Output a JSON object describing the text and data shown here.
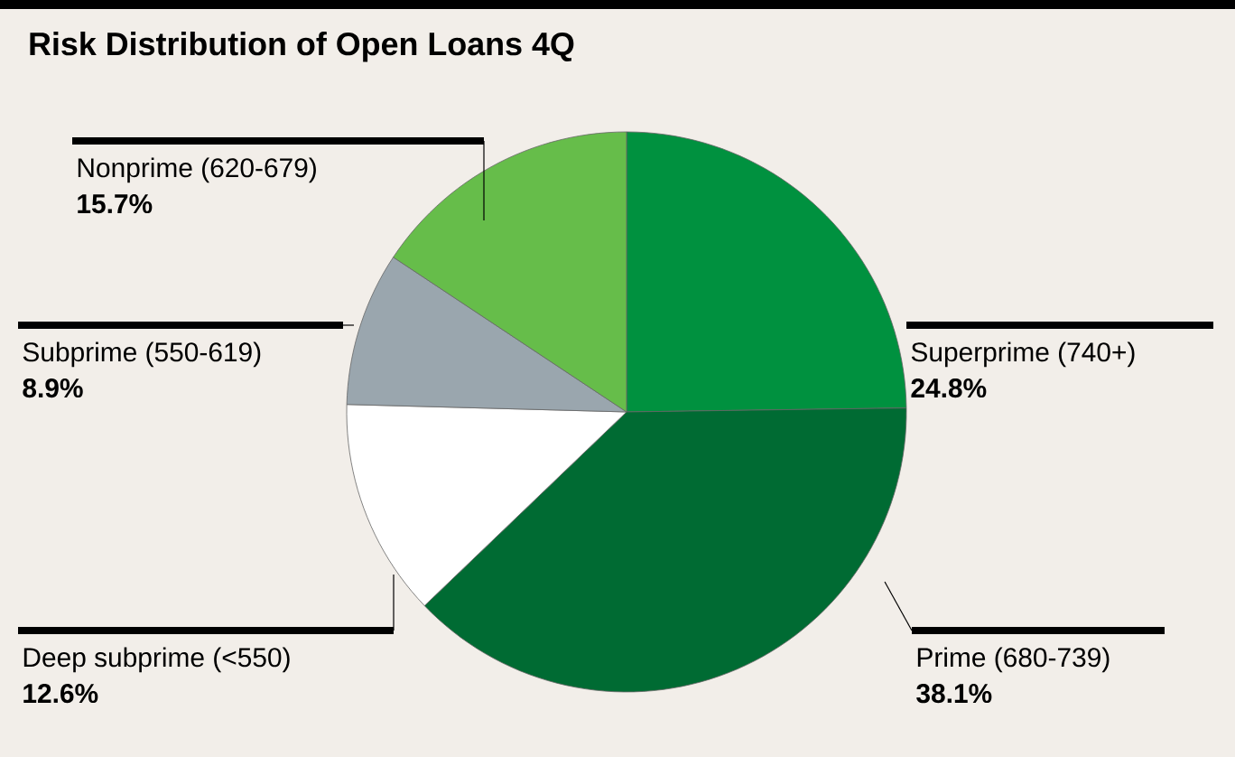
{
  "chart_data": {
    "type": "pie",
    "title": "Risk Distribution of Open Loans 4Q",
    "categories": [
      "Superprime (740+)",
      "Prime (680-739)",
      "Deep subprime (<550)",
      "Subprime (550-619)",
      "Nonprime (620-679)"
    ],
    "values": [
      24.8,
      38.1,
      12.6,
      8.9,
      15.7
    ],
    "value_labels": [
      "24.8%",
      "38.1%",
      "12.6%",
      "8.9%",
      "15.7%"
    ],
    "colors": [
      "#00913f",
      "#006b33",
      "#ffffff",
      "#9aa6ae",
      "#66bd4a"
    ]
  }
}
